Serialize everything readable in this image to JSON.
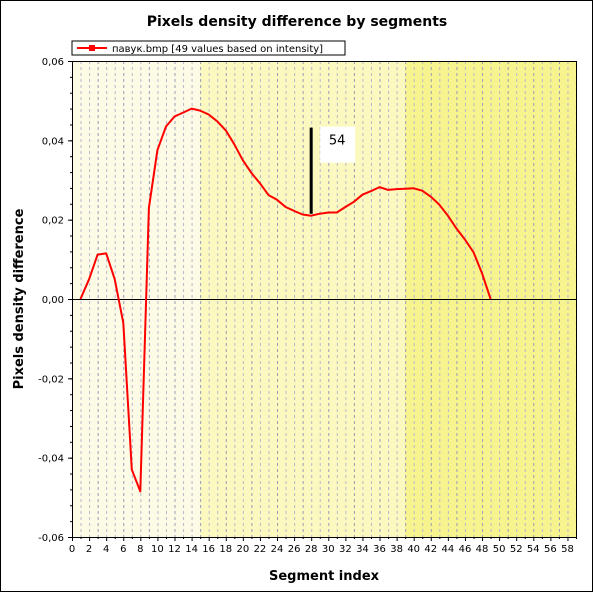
{
  "chart_data": {
    "type": "line",
    "title": "Pixels density difference by segments",
    "xlabel": "Segment index",
    "ylabel": "Pixels density difference",
    "xlim": [
      0,
      59
    ],
    "ylim": [
      -0.06,
      0.06
    ],
    "x_ticks": [
      0,
      2,
      4,
      6,
      8,
      10,
      12,
      14,
      16,
      18,
      20,
      22,
      24,
      26,
      28,
      30,
      32,
      34,
      36,
      38,
      40,
      42,
      44,
      46,
      48,
      50,
      52,
      54,
      56,
      58
    ],
    "y_ticks": [
      "-0,06",
      "-0,04",
      "-0,02",
      "0,00",
      "0,02",
      "0,04",
      "0,06"
    ],
    "y_tick_values": [
      -0.06,
      -0.04,
      -0.02,
      0,
      0.02,
      0.04,
      0.06
    ],
    "grid": "vertical dashed",
    "legend_position": "top-left",
    "colors": {
      "series": "#ff0000",
      "zero_line": "#000000",
      "band_light": "#fdfbe6",
      "band_mid": "#fbf9bf",
      "band_strong": "#f7f38f"
    },
    "series": [
      {
        "name": "павук.bmp [49 values based on intensity]",
        "x": [
          1,
          2,
          3,
          4,
          5,
          6,
          7,
          8,
          9,
          10,
          11,
          12,
          13,
          14,
          15,
          16,
          17,
          18,
          19,
          20,
          21,
          22,
          23,
          24,
          25,
          26,
          27,
          28,
          29,
          30,
          31,
          32,
          33,
          34,
          35,
          36,
          37,
          38,
          39,
          40,
          41,
          42,
          43,
          44,
          45,
          46,
          47,
          48,
          49
        ],
        "values": [
          0,
          0.005,
          0.0112,
          0.0115,
          0.005,
          -0.006,
          -0.043,
          -0.0485,
          0.023,
          0.0375,
          0.0435,
          0.046,
          0.047,
          0.048,
          0.0475,
          0.0465,
          0.0448,
          0.0425,
          0.039,
          0.035,
          0.0318,
          0.0292,
          0.0262,
          0.025,
          0.0232,
          0.0222,
          0.0213,
          0.021,
          0.0215,
          0.0218,
          0.0218,
          0.0232,
          0.0245,
          0.0263,
          0.0272,
          0.0282,
          0.0275,
          0.0277,
          0.0278,
          0.0279,
          0.0273,
          0.0258,
          0.0238,
          0.021,
          0.0178,
          0.015,
          0.0118,
          0.0065,
          0
        ]
      }
    ],
    "annotation": {
      "label": "54",
      "x": 28,
      "y_from": 0.0215,
      "y_to": 0.0432
    }
  }
}
